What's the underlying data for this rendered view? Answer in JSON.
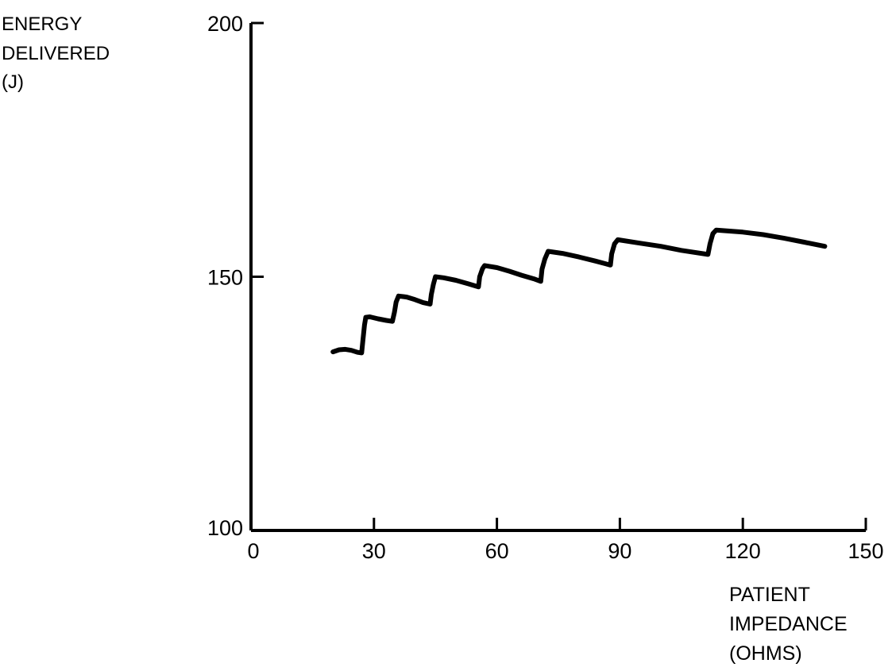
{
  "chart_data": {
    "type": "line",
    "title": "",
    "ylabel_lines": [
      "ENERGY",
      "DELIVERED",
      "(J)"
    ],
    "xlabel_lines": [
      "PATIENT",
      "IMPEDANCE",
      "(OHMS)"
    ],
    "xlim": [
      0,
      150
    ],
    "ylim": [
      100,
      200
    ],
    "xticks": [
      0,
      30,
      60,
      90,
      120,
      150
    ],
    "xtick_labels": [
      "0",
      "30",
      "60",
      "90",
      "120",
      "150"
    ],
    "yticks": [
      100,
      150,
      200
    ],
    "ytick_labels": [
      "100",
      "150",
      "200"
    ],
    "grid": false,
    "legend": "none",
    "line_color": "#000000",
    "series": [
      {
        "x": [
          20,
          21.5,
          23,
          24.5,
          26,
          27,
          27.3,
          27.7,
          28,
          29,
          31,
          33,
          34.5,
          35,
          35.4,
          36,
          38,
          40,
          42,
          43.7,
          44,
          44.5,
          45,
          47,
          50,
          53,
          55.5,
          55.8,
          56.5,
          57,
          60,
          63,
          66,
          69,
          70.7,
          71,
          71.7,
          72.5,
          76,
          80,
          84,
          87.7,
          88,
          88.7,
          89.5,
          95,
          100,
          105,
          111.5,
          112,
          112.7,
          113.5,
          120,
          125,
          130,
          135,
          140
        ],
        "y": [
          135.2,
          135.6,
          135.7,
          135.5,
          135.1,
          135.0,
          137.5,
          140.5,
          142.0,
          142.1,
          141.7,
          141.4,
          141.2,
          143.0,
          145.0,
          146.2,
          146.0,
          145.5,
          144.9,
          144.6,
          146.5,
          148.5,
          150.0,
          149.8,
          149.3,
          148.6,
          148.0,
          150.0,
          151.6,
          152.2,
          151.8,
          151.1,
          150.3,
          149.6,
          149.1,
          151.5,
          153.5,
          155.0,
          154.6,
          153.9,
          153.1,
          152.3,
          154.5,
          156.5,
          157.3,
          156.6,
          156.0,
          155.2,
          154.4,
          156.5,
          158.5,
          159.2,
          158.8,
          158.3,
          157.6,
          156.8,
          156.0
        ]
      }
    ]
  }
}
